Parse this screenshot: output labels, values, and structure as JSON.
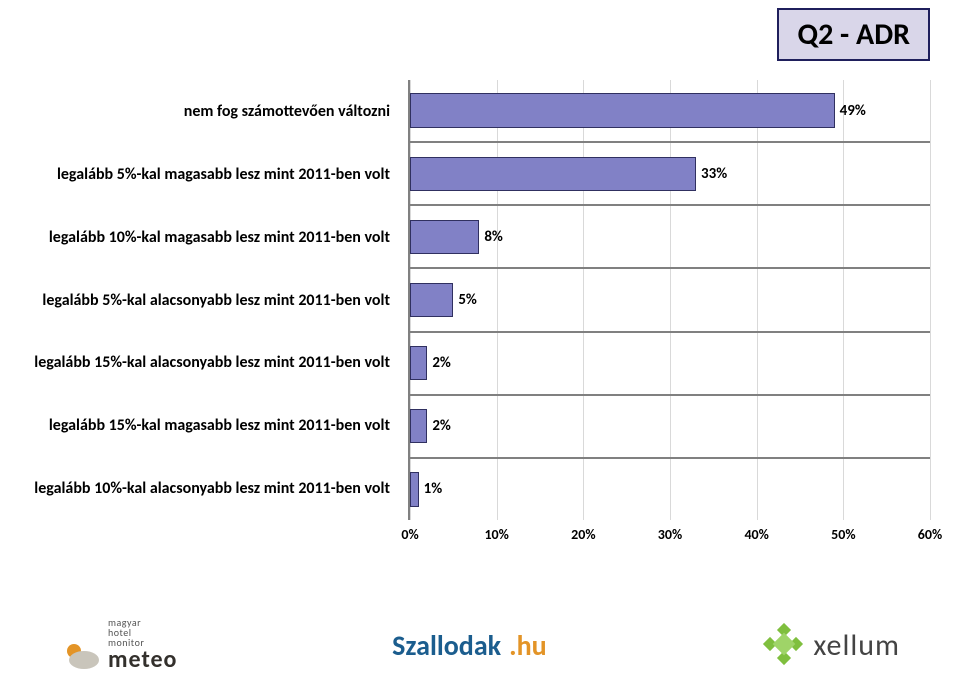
{
  "title": "Q2 - ADR",
  "title_style": {
    "background": "#d9d6e9",
    "border_color": "#1f1f5c",
    "font_size": 30,
    "color": "#000000"
  },
  "chart": {
    "type": "bar-horizontal",
    "xlim": [
      0,
      60
    ],
    "xtick_step": 10,
    "xticks": [
      "0%",
      "10%",
      "20%",
      "30%",
      "40%",
      "50%",
      "60%"
    ],
    "bar_color": "#8181c6",
    "bar_border": "#303060",
    "grid_color": "#d9d9d9",
    "axis_color": "#808080",
    "background": "#ffffff",
    "label_fontsize": 16,
    "value_fontsize": 15,
    "tick_fontsize": 14,
    "categories": [
      {
        "label": "nem fog számottevően változni",
        "value": 49,
        "text": "49%"
      },
      {
        "label": "legalább 5%-kal magasabb lesz mint 2011-ben volt",
        "value": 33,
        "text": "33%"
      },
      {
        "label": "legalább 10%-kal magasabb lesz mint 2011-ben volt",
        "value": 8,
        "text": "8%"
      },
      {
        "label": "legalább 5%-kal alacsonyabb lesz mint 2011-ben volt",
        "value": 5,
        "text": "5%"
      },
      {
        "label": "legalább 15%-kal alacsonyabb lesz mint 2011-ben volt",
        "value": 2,
        "text": "2%"
      },
      {
        "label": "legalább 15%-kal magasabb lesz mint 2011-ben volt",
        "value": 2,
        "text": "2%"
      },
      {
        "label": "legalább 10%-kal alacsonyabb lesz mint 2011-ben volt",
        "value": 1,
        "text": "1%"
      }
    ]
  },
  "footer_logos": {
    "meteo": {
      "line1": "magyar",
      "line2": "hotel",
      "line3": "monitor",
      "brand": "meteo"
    },
    "szallodak": {
      "part1": "Szallodak",
      "part2": ".hu"
    },
    "xellum": {
      "text": "xellum",
      "color": "#7fbf3e"
    }
  }
}
